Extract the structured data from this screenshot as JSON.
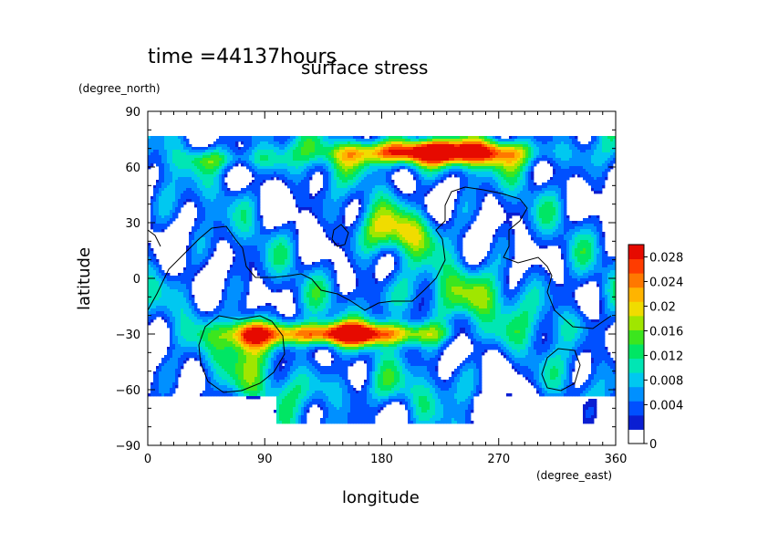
{
  "time_label": "time =44137hours",
  "chart_data": {
    "type": "heatmap",
    "title": "surface stress",
    "xlabel": "longitude",
    "ylabel": "latitude",
    "xunit": "(degree_east)",
    "yunit": "(degree_north)",
    "xlim": [
      0,
      360
    ],
    "ylim": [
      -90,
      90
    ],
    "xticks": [
      0,
      90,
      180,
      270,
      360
    ],
    "yticks": [
      -90,
      -60,
      -30,
      0,
      30,
      60,
      90
    ],
    "colorbar": {
      "min": 0,
      "max": 0.03,
      "ticks": [
        0,
        0.004,
        0.008,
        0.012,
        0.016,
        0.02,
        0.024,
        0.028
      ],
      "tick_labels": [
        "0",
        "0.004",
        "0.008",
        "0.012",
        "0.016",
        "0.02",
        "0.024",
        "0.028"
      ],
      "colors": [
        "#ffffff",
        "#0a1ed2",
        "#0050ff",
        "#0090ff",
        "#00c8f0",
        "#00e6b4",
        "#00e664",
        "#3ce61e",
        "#a0e600",
        "#f0dc00",
        "#ffb400",
        "#ff7800",
        "#ff3c00",
        "#e60a00"
      ]
    },
    "features": [
      {
        "name": "northern high-latitude band",
        "lon": [
          120,
          300
        ],
        "lat": [
          60,
          75
        ],
        "peak": 0.028
      },
      {
        "name": "southern mid-latitude band",
        "lon": [
          60,
          225
        ],
        "lat": [
          -38,
          -22
        ],
        "peak": 0.028
      },
      {
        "name": "southwest maximum",
        "lon": [
          65,
          85
        ],
        "lat": [
          -35,
          -20
        ],
        "peak": 0.03
      },
      {
        "name": "northern tropical patch",
        "lon": [
          170,
          220
        ],
        "lat": [
          15,
          35
        ],
        "peak": 0.018
      }
    ]
  }
}
